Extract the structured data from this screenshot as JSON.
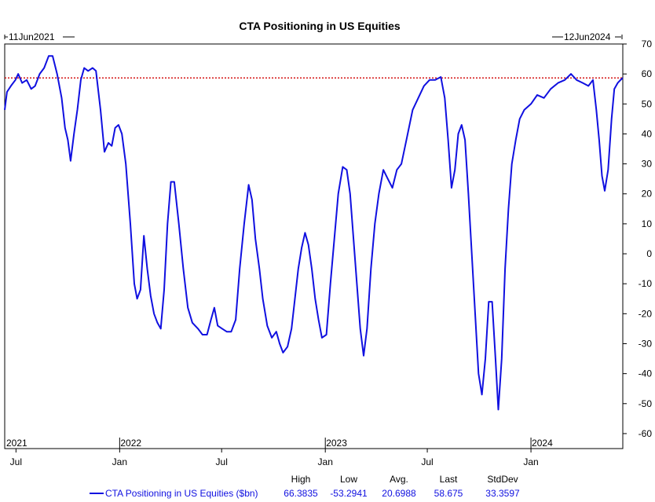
{
  "chart_data": {
    "type": "line",
    "title": "CTA Positioning in US Equities",
    "start_label": "11Jun2021",
    "end_label": "12Jun2024",
    "xlim": [
      "2021-06-11",
      "2024-06-12"
    ],
    "ylim": [
      -65,
      70
    ],
    "y_ticks": [
      70,
      60,
      50,
      40,
      30,
      20,
      10,
      0,
      -10,
      -20,
      -30,
      -40,
      -50,
      -60
    ],
    "y_tick_labels": [
      "70",
      "60",
      "50",
      "40",
      "30",
      "20",
      "10",
      "0",
      "-10",
      "-20",
      "-30",
      "-40",
      "-50",
      "-60"
    ],
    "year_labels": [
      {
        "date": "2021-06-11",
        "text": "2021"
      },
      {
        "date": "2022-01-01",
        "text": "2022"
      },
      {
        "date": "2023-01-01",
        "text": "2023"
      },
      {
        "date": "2024-01-01",
        "text": "2024"
      }
    ],
    "month_labels": [
      {
        "date": "2021-07-01",
        "text": "Jul"
      },
      {
        "date": "2022-01-01",
        "text": "Jan"
      },
      {
        "date": "2022-07-01",
        "text": "Jul"
      },
      {
        "date": "2023-01-01",
        "text": "Jan"
      },
      {
        "date": "2023-07-01",
        "text": "Jul"
      },
      {
        "date": "2024-01-01",
        "text": "Jan"
      }
    ],
    "reference_line": {
      "y": 58.675,
      "color": "#d00000",
      "style": "dotted"
    },
    "grid": false,
    "y_axis_position": "right",
    "series": [
      {
        "name": "CTA Positioning in US Equities ($bn)",
        "color": "#1010e0",
        "points": [
          [
            "2021-06-11",
            48
          ],
          [
            "2021-06-15",
            54
          ],
          [
            "2021-06-22",
            56
          ],
          [
            "2021-06-30",
            58
          ],
          [
            "2021-07-05",
            60
          ],
          [
            "2021-07-12",
            57
          ],
          [
            "2021-07-20",
            58
          ],
          [
            "2021-07-28",
            55
          ],
          [
            "2021-08-04",
            56
          ],
          [
            "2021-08-12",
            60
          ],
          [
            "2021-08-20",
            62
          ],
          [
            "2021-08-28",
            66
          ],
          [
            "2021-09-04",
            66
          ],
          [
            "2021-09-12",
            60
          ],
          [
            "2021-09-20",
            52
          ],
          [
            "2021-09-26",
            42
          ],
          [
            "2021-10-01",
            38
          ],
          [
            "2021-10-06",
            31
          ],
          [
            "2021-10-12",
            40
          ],
          [
            "2021-10-18",
            48
          ],
          [
            "2021-10-24",
            58
          ],
          [
            "2021-10-30",
            62
          ],
          [
            "2021-11-06",
            61
          ],
          [
            "2021-11-14",
            62
          ],
          [
            "2021-11-20",
            61
          ],
          [
            "2021-11-28",
            48
          ],
          [
            "2021-12-05",
            34
          ],
          [
            "2021-12-12",
            37
          ],
          [
            "2021-12-18",
            36
          ],
          [
            "2021-12-24",
            42
          ],
          [
            "2021-12-30",
            43
          ],
          [
            "2022-01-05",
            40
          ],
          [
            "2022-01-12",
            30
          ],
          [
            "2022-01-20",
            10
          ],
          [
            "2022-01-27",
            -10
          ],
          [
            "2022-02-01",
            -15
          ],
          [
            "2022-02-07",
            -12
          ],
          [
            "2022-02-13",
            6
          ],
          [
            "2022-02-19",
            -5
          ],
          [
            "2022-02-25",
            -14
          ],
          [
            "2022-03-03",
            -20
          ],
          [
            "2022-03-09",
            -23
          ],
          [
            "2022-03-15",
            -25
          ],
          [
            "2022-03-21",
            -12
          ],
          [
            "2022-03-27",
            10
          ],
          [
            "2022-04-02",
            24
          ],
          [
            "2022-04-08",
            24
          ],
          [
            "2022-04-16",
            10
          ],
          [
            "2022-04-24",
            -5
          ],
          [
            "2022-05-02",
            -18
          ],
          [
            "2022-05-10",
            -23
          ],
          [
            "2022-05-20",
            -25
          ],
          [
            "2022-05-28",
            -27
          ],
          [
            "2022-06-05",
            -27
          ],
          [
            "2022-06-12",
            -22
          ],
          [
            "2022-06-18",
            -18
          ],
          [
            "2022-06-24",
            -24
          ],
          [
            "2022-07-02",
            -25
          ],
          [
            "2022-07-10",
            -26
          ],
          [
            "2022-07-18",
            -26
          ],
          [
            "2022-07-26",
            -22
          ],
          [
            "2022-08-02",
            -5
          ],
          [
            "2022-08-10",
            10
          ],
          [
            "2022-08-18",
            23
          ],
          [
            "2022-08-24",
            18
          ],
          [
            "2022-08-30",
            5
          ],
          [
            "2022-09-06",
            -5
          ],
          [
            "2022-09-12",
            -15
          ],
          [
            "2022-09-20",
            -24
          ],
          [
            "2022-09-28",
            -28
          ],
          [
            "2022-10-06",
            -26
          ],
          [
            "2022-10-12",
            -30
          ],
          [
            "2022-10-18",
            -33
          ],
          [
            "2022-10-26",
            -31
          ],
          [
            "2022-11-02",
            -25
          ],
          [
            "2022-11-08",
            -15
          ],
          [
            "2022-11-14",
            -5
          ],
          [
            "2022-11-20",
            2
          ],
          [
            "2022-11-26",
            7
          ],
          [
            "2022-12-02",
            3
          ],
          [
            "2022-12-08",
            -5
          ],
          [
            "2022-12-14",
            -15
          ],
          [
            "2022-12-20",
            -22
          ],
          [
            "2022-12-26",
            -28
          ],
          [
            "2023-01-03",
            -27
          ],
          [
            "2023-01-10",
            -10
          ],
          [
            "2023-01-17",
            5
          ],
          [
            "2023-01-24",
            20
          ],
          [
            "2023-02-01",
            29
          ],
          [
            "2023-02-08",
            28
          ],
          [
            "2023-02-14",
            20
          ],
          [
            "2023-02-20",
            5
          ],
          [
            "2023-02-26",
            -10
          ],
          [
            "2023-03-04",
            -25
          ],
          [
            "2023-03-10",
            -34
          ],
          [
            "2023-03-16",
            -25
          ],
          [
            "2023-03-23",
            -5
          ],
          [
            "2023-03-30",
            10
          ],
          [
            "2023-04-06",
            20
          ],
          [
            "2023-04-14",
            28
          ],
          [
            "2023-04-22",
            25
          ],
          [
            "2023-04-30",
            22
          ],
          [
            "2023-05-08",
            28
          ],
          [
            "2023-05-16",
            30
          ],
          [
            "2023-05-25",
            38
          ],
          [
            "2023-06-05",
            48
          ],
          [
            "2023-06-15",
            52
          ],
          [
            "2023-06-25",
            56
          ],
          [
            "2023-07-05",
            58
          ],
          [
            "2023-07-15",
            58
          ],
          [
            "2023-07-25",
            59
          ],
          [
            "2023-08-01",
            52
          ],
          [
            "2023-08-07",
            38
          ],
          [
            "2023-08-13",
            22
          ],
          [
            "2023-08-19",
            28
          ],
          [
            "2023-08-25",
            40
          ],
          [
            "2023-08-31",
            43
          ],
          [
            "2023-09-06",
            38
          ],
          [
            "2023-09-12",
            20
          ],
          [
            "2023-09-18",
            0
          ],
          [
            "2023-09-24",
            -20
          ],
          [
            "2023-09-30",
            -40
          ],
          [
            "2023-10-06",
            -47
          ],
          [
            "2023-10-12",
            -35
          ],
          [
            "2023-10-18",
            -16
          ],
          [
            "2023-10-24",
            -16
          ],
          [
            "2023-10-30",
            -35
          ],
          [
            "2023-11-04",
            -52
          ],
          [
            "2023-11-10",
            -35
          ],
          [
            "2023-11-16",
            -5
          ],
          [
            "2023-11-22",
            15
          ],
          [
            "2023-11-28",
            30
          ],
          [
            "2023-12-05",
            38
          ],
          [
            "2023-12-12",
            45
          ],
          [
            "2023-12-20",
            48
          ],
          [
            "2024-01-01",
            50
          ],
          [
            "2024-01-12",
            53
          ],
          [
            "2024-01-24",
            52
          ],
          [
            "2024-02-05",
            55
          ],
          [
            "2024-02-18",
            57
          ],
          [
            "2024-03-01",
            58
          ],
          [
            "2024-03-12",
            60
          ],
          [
            "2024-03-22",
            58
          ],
          [
            "2024-04-02",
            57
          ],
          [
            "2024-04-12",
            56
          ],
          [
            "2024-04-20",
            58
          ],
          [
            "2024-04-26",
            48
          ],
          [
            "2024-05-01",
            38
          ],
          [
            "2024-05-06",
            26
          ],
          [
            "2024-05-11",
            21
          ],
          [
            "2024-05-17",
            28
          ],
          [
            "2024-05-23",
            45
          ],
          [
            "2024-05-28",
            55
          ],
          [
            "2024-06-03",
            57
          ],
          [
            "2024-06-08",
            58
          ],
          [
            "2024-06-12",
            58.675
          ]
        ]
      }
    ],
    "stats": {
      "headers": [
        "High",
        "Low",
        "Avg.",
        "Last",
        "StdDev"
      ],
      "values": [
        "66.3835",
        "-53.2941",
        "20.6988",
        "58.675",
        "33.3597"
      ]
    }
  }
}
